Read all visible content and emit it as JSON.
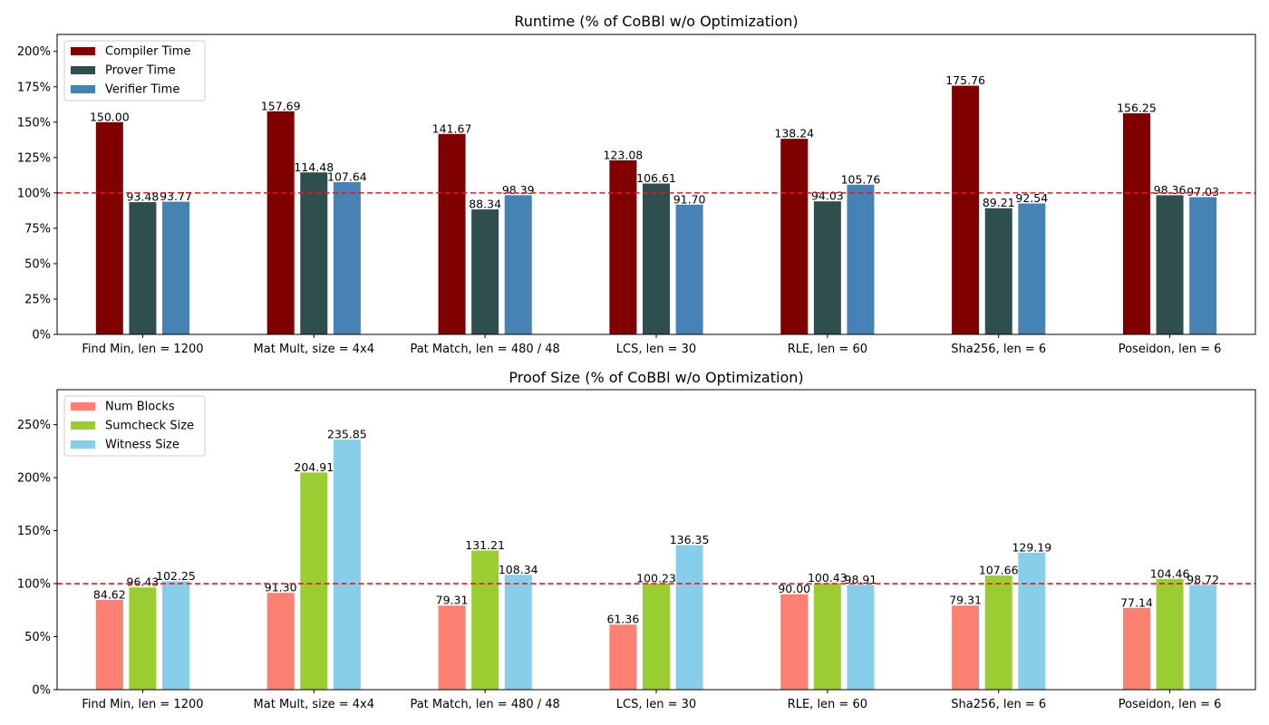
{
  "colors": {
    "reference_line": "#e41a1c"
  },
  "chart_data": [
    {
      "type": "bar",
      "title": "Runtime (% of CoBBl w/o Optimization)",
      "categories": [
        "Find Min, len = 1200",
        "Mat Mult, size = 4x4",
        "Pat Match, len = 480 / 48",
        "LCS, len = 30",
        "RLE, len = 60",
        "Sha256, len = 6",
        "Poseidon, len = 6"
      ],
      "series": [
        {
          "name": "Compiler Time",
          "color": "#800000",
          "values": [
            150.0,
            157.69,
            141.67,
            123.08,
            138.24,
            175.76,
            156.25
          ],
          "labels": [
            "150.00",
            "157.69",
            "141.67",
            "123.08",
            "138.24",
            "175.76",
            "156.25"
          ]
        },
        {
          "name": "Prover Time",
          "color": "#2f4f4f",
          "values": [
            93.48,
            114.48,
            88.34,
            106.61,
            94.03,
            89.21,
            98.36
          ],
          "labels": [
            "93.48",
            "114.48",
            "88.34",
            "106.61",
            "94.03",
            "89.21",
            "98.36"
          ]
        },
        {
          "name": "Verifier Time",
          "color": "#4682b4",
          "values": [
            93.77,
            107.64,
            98.39,
            91.7,
            105.76,
            92.54,
            97.03
          ],
          "labels": [
            "93.77",
            "107.64",
            "98.39",
            "91.70",
            "105.76",
            "92.54",
            "97.03"
          ]
        }
      ],
      "ylim": [
        0,
        212
      ],
      "yticks": [
        0,
        25,
        50,
        75,
        100,
        125,
        150,
        175,
        200
      ],
      "ytick_labels": [
        "0%",
        "25%",
        "50%",
        "75%",
        "100%",
        "125%",
        "150%",
        "175%",
        "200%"
      ],
      "reference_line": 100,
      "legend": "top-left",
      "grid": false
    },
    {
      "type": "bar",
      "title": "Proof Size (% of CoBBl w/o Optimization)",
      "categories": [
        "Find Min, len = 1200",
        "Mat Mult, size = 4x4",
        "Pat Match, len = 480 / 48",
        "LCS, len = 30",
        "RLE, len = 60",
        "Sha256, len = 6",
        "Poseidon, len = 6"
      ],
      "series": [
        {
          "name": "Num Blocks",
          "color": "#fa8072",
          "values": [
            84.62,
            91.3,
            79.31,
            61.36,
            90.0,
            79.31,
            77.14
          ],
          "labels": [
            "84.62",
            "91.30",
            "79.31",
            "61.36",
            "90.00",
            "79.31",
            "77.14"
          ]
        },
        {
          "name": "Sumcheck Size",
          "color": "#9acd32",
          "values": [
            96.43,
            204.91,
            131.21,
            100.23,
            100.43,
            107.66,
            104.46
          ],
          "labels": [
            "96.43",
            "204.91",
            "131.21",
            "100.23",
            "100.43",
            "107.66",
            "104.46"
          ]
        },
        {
          "name": "Witness Size",
          "color": "#87ceeb",
          "values": [
            102.25,
            235.85,
            108.34,
            136.35,
            98.91,
            129.19,
            98.72
          ],
          "labels": [
            "102.25",
            "235.85",
            "108.34",
            "136.35",
            "98.91",
            "129.19",
            "98.72"
          ]
        }
      ],
      "ylim": [
        0,
        283
      ],
      "yticks": [
        0,
        50,
        100,
        150,
        200,
        250
      ],
      "ytick_labels": [
        "0%",
        "50%",
        "100%",
        "150%",
        "200%",
        "250%"
      ],
      "reference_line": 100,
      "legend": "top-left",
      "grid": false
    }
  ]
}
